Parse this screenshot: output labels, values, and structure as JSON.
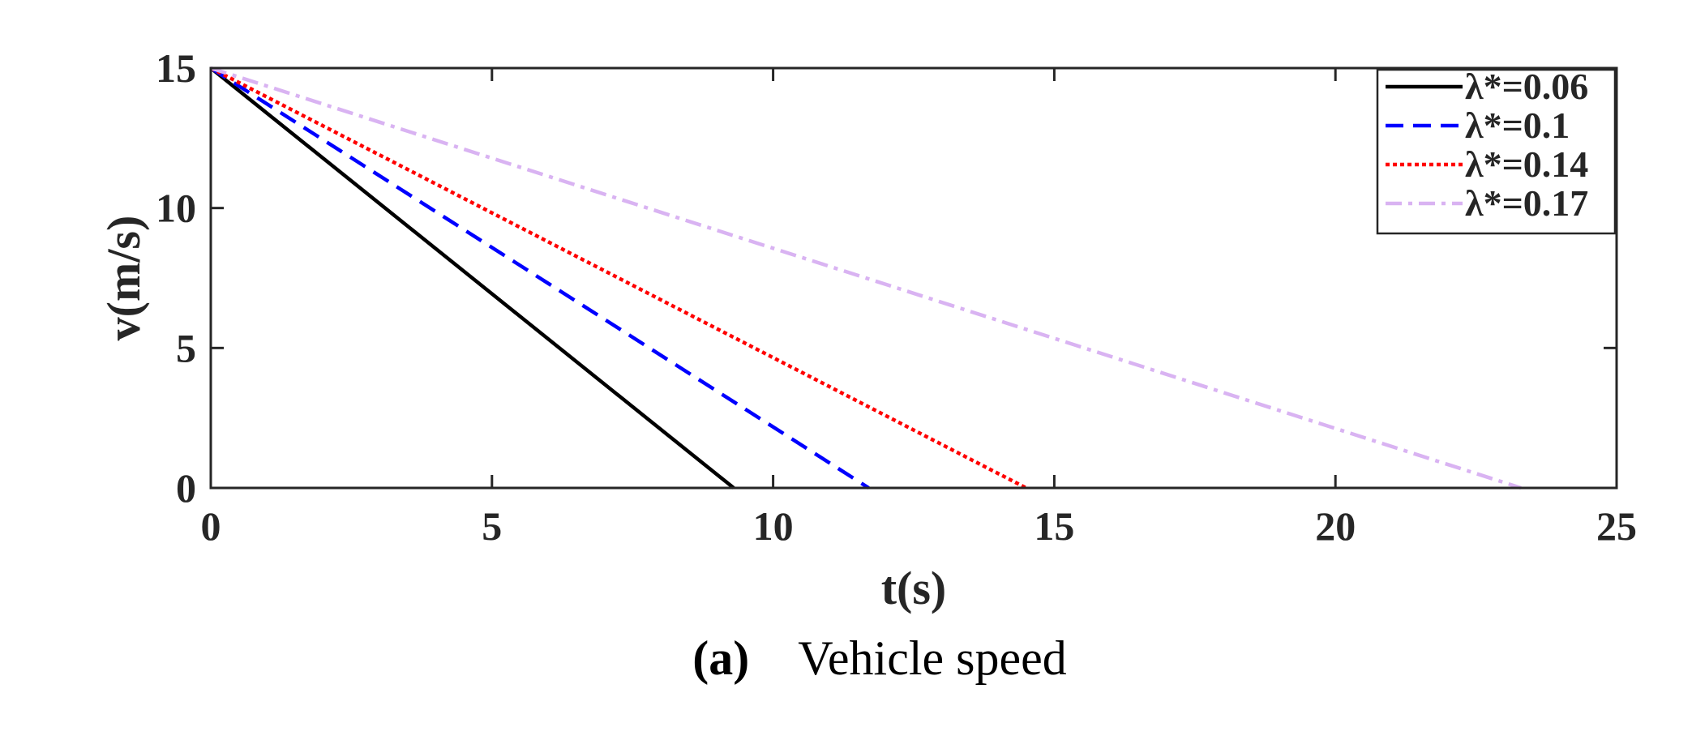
{
  "chart_data": {
    "type": "line",
    "xlabel": "t(s)",
    "ylabel": "v(m/s)",
    "xlim": [
      0,
      25
    ],
    "ylim": [
      0,
      15
    ],
    "xticks": [
      0,
      5,
      10,
      15,
      20,
      25
    ],
    "yticks": [
      0,
      5,
      10,
      15
    ],
    "grid": false,
    "legend_position": "top-right",
    "series": [
      {
        "name": "λ*=0.06",
        "color": "#000000",
        "dash": "solid",
        "x": [
          0,
          9.3
        ],
        "y": [
          15,
          0
        ]
      },
      {
        "name": "λ*=0.1",
        "color": "#0000ff",
        "dash": "dashed",
        "x": [
          0,
          11.7
        ],
        "y": [
          15,
          0
        ]
      },
      {
        "name": "λ*=0.14",
        "color": "#ff0000",
        "dash": "dotted",
        "x": [
          0,
          14.5
        ],
        "y": [
          15,
          0
        ]
      },
      {
        "name": "λ*=0.17",
        "color": "#d9b3f2",
        "dash": "dashdot",
        "x": [
          0,
          23.3
        ],
        "y": [
          15,
          0
        ]
      }
    ]
  },
  "caption": {
    "letter": "(a)",
    "text": "Vehicle speed"
  }
}
